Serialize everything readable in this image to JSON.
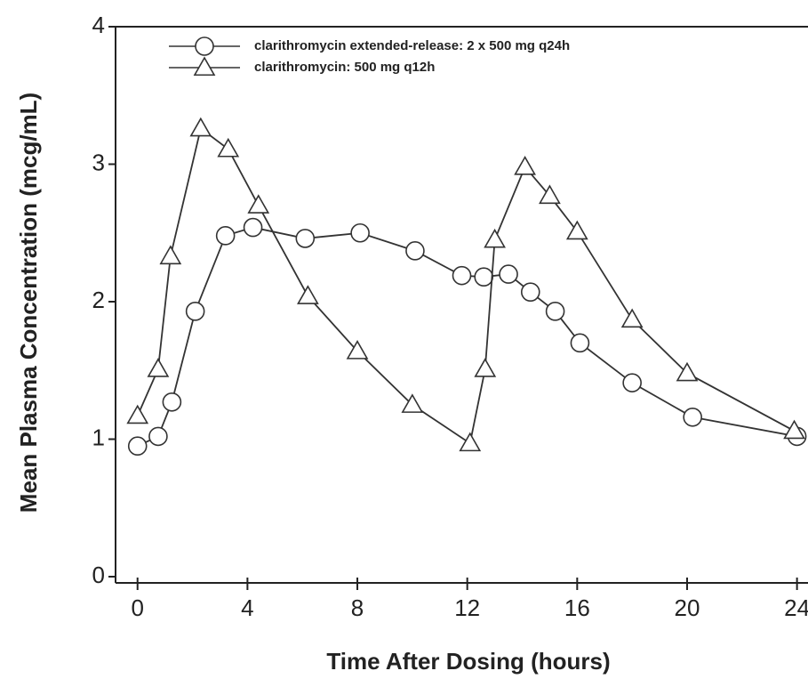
{
  "chart_data": {
    "type": "line",
    "x_label": "Time After Dosing (hours)",
    "y_label": "Mean Plasma Concentration (mcg/mL)",
    "xlim": [
      -0.8,
      24.4
    ],
    "xticks": [
      0,
      4,
      8,
      12,
      16,
      20,
      24
    ],
    "ylim": [
      0,
      4
    ],
    "yticks": [
      0,
      1,
      2,
      3,
      4
    ],
    "grid": false,
    "legend": "top-left",
    "series": [
      {
        "name": "clarithromycin extended-release: 2 x 500 mg q24h",
        "color": "#333333",
        "marker": "circle",
        "x": [
          0,
          0.75,
          1.25,
          2.1,
          3.2,
          4.2,
          6.1,
          8.1,
          10.1,
          11.8,
          12.6,
          13.5,
          14.3,
          15.2,
          16.1,
          18,
          20.2,
          24
        ],
        "values": [
          0.95,
          1.02,
          1.27,
          1.93,
          2.48,
          2.54,
          2.46,
          2.5,
          2.37,
          2.19,
          2.18,
          2.2,
          2.07,
          1.93,
          1.7,
          1.41,
          1.16,
          1.02
        ]
      },
      {
        "name": "clarithromycin: 500 mg q12h",
        "color": "#333333",
        "marker": "triangle",
        "x": [
          0,
          0.75,
          1.2,
          2.3,
          3.3,
          4.4,
          6.2,
          8,
          10,
          12.1,
          12.65,
          13,
          14.1,
          15,
          16,
          18,
          20,
          23.9
        ],
        "values": [
          1.17,
          1.51,
          2.33,
          3.26,
          3.11,
          2.7,
          2.04,
          1.64,
          1.25,
          0.97,
          1.51,
          2.45,
          2.98,
          2.77,
          2.51,
          1.87,
          1.48,
          1.06
        ]
      }
    ]
  }
}
